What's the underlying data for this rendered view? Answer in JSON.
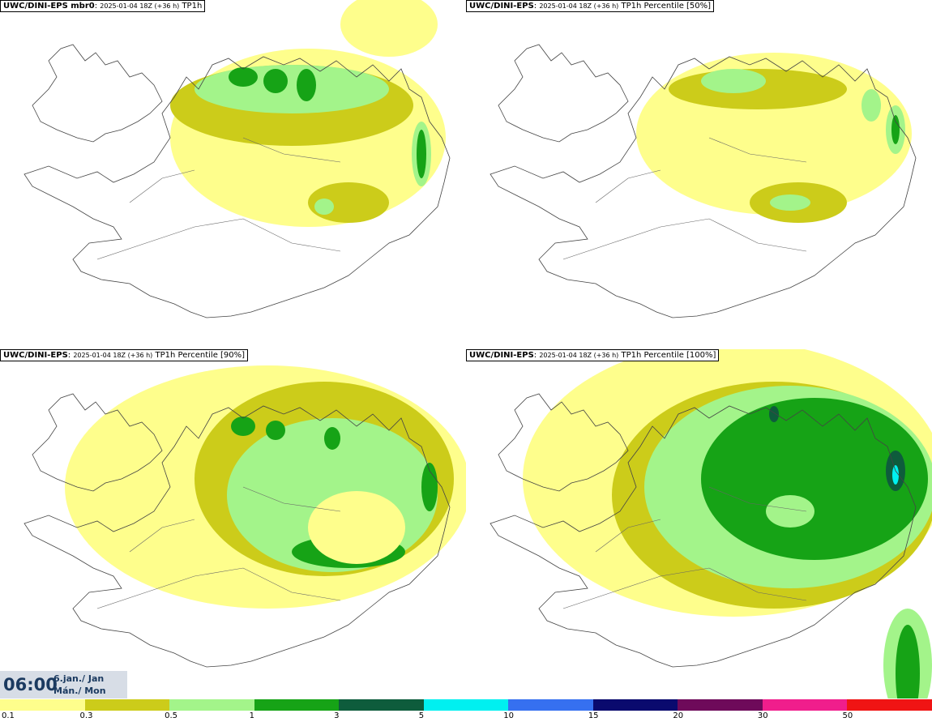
{
  "panels": [
    {
      "model": "UWC/DINI-EPS mbr0",
      "run": "2025-01-04 18Z (+36 h)",
      "field": "TP1h"
    },
    {
      "model": "UWC/DINI-EPS",
      "run": "2025-01-04 18Z (+36 h)",
      "field": "TP1h Percentile [50%]"
    },
    {
      "model": "UWC/DINI-EPS",
      "run": "2025-01-04 18Z (+36 h)",
      "field": "TP1h Percentile [90%]"
    },
    {
      "model": "UWC/DINI-EPS",
      "run": "2025-01-04 18Z (+36 h)",
      "field": "TP1h Percentile [100%]"
    }
  ],
  "valid_time": {
    "time": "06:00",
    "date_line1": "6.jan./ Jan",
    "date_line2": "Mán./ Mon"
  },
  "legend": {
    "colors": [
      "#fefe8c",
      "#cccc1a",
      "#a3f48a",
      "#16a316",
      "#0e5c3c",
      "#00f0f0",
      "#3670f0",
      "#0a0a6e",
      "#6e0a5a",
      "#f01e8c",
      "#f01414"
    ],
    "labels": [
      "0.1",
      "0.3",
      "0.5",
      "1",
      "3",
      "5",
      "10",
      "15",
      "20",
      "30",
      "50"
    ]
  },
  "precip_colors": {
    "c01": "#fefe8c",
    "c03": "#cccc1a",
    "c05": "#a3f48a",
    "c1": "#16a316",
    "c3": "#0e5c3c",
    "c5": "#00f0f0"
  }
}
